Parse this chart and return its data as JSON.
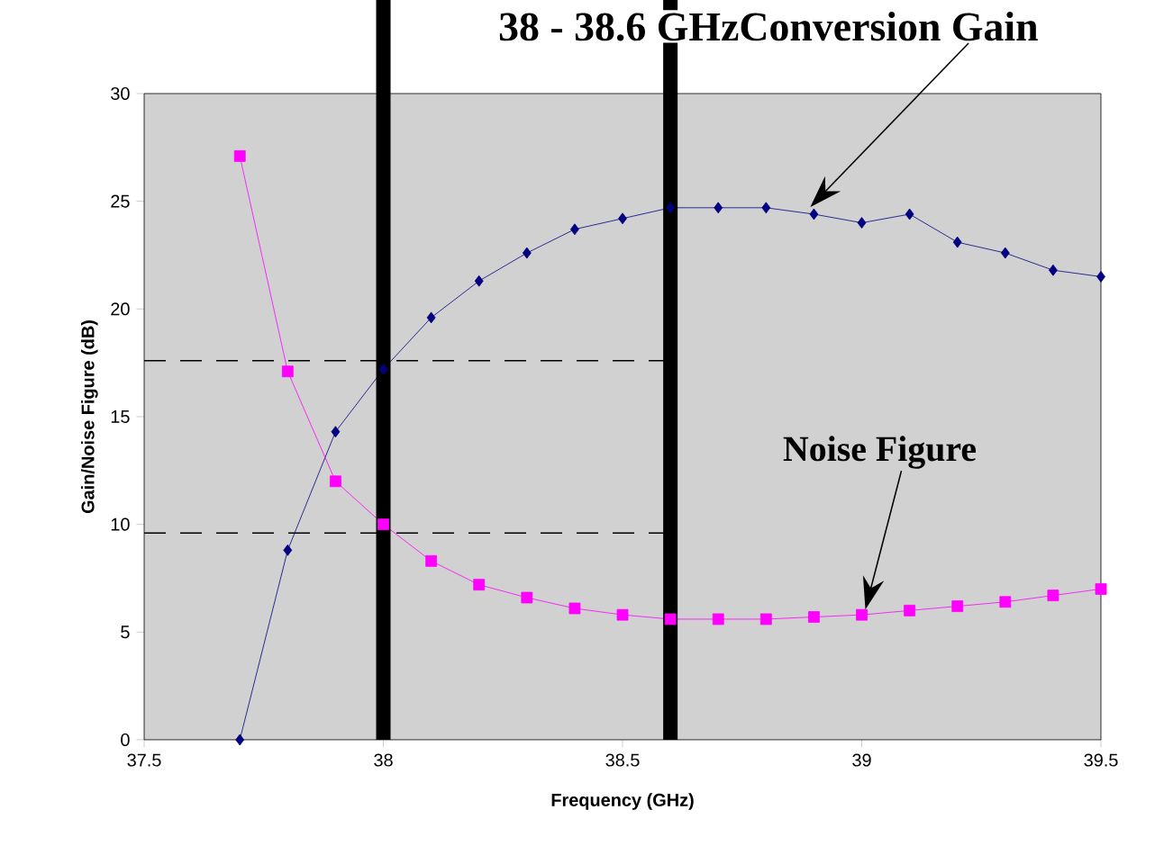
{
  "chart_data": {
    "type": "line",
    "xlabel": "Frequency (GHz)",
    "ylabel": "Gain/Noise Figure (dB)",
    "x": [
      37.7,
      37.8,
      37.9,
      38.0,
      38.1,
      38.2,
      38.3,
      38.4,
      38.5,
      38.6,
      38.7,
      38.8,
      38.9,
      39.0,
      39.1,
      39.2,
      39.3,
      39.4,
      39.5
    ],
    "series": [
      {
        "color": "#000080",
        "marker": "diamond",
        "values": [
          0,
          8.8,
          14.3,
          17.2,
          19.6,
          21.3,
          22.6,
          23.7,
          24.2,
          24.7,
          24.7,
          24.7,
          24.4,
          24.0,
          24.4,
          23.1,
          22.6,
          21.8,
          21.5
        ]
      },
      {
        "color": "#ff00ff",
        "marker": "square",
        "values": [
          27.1,
          17.1,
          12.0,
          10.0,
          8.3,
          7.2,
          6.6,
          6.1,
          5.8,
          5.6,
          5.6,
          5.6,
          5.7,
          5.8,
          6.0,
          6.2,
          6.4,
          6.7,
          7.0
        ]
      }
    ],
    "xlim": [
      37.5,
      39.5
    ],
    "xticks": [
      37.5,
      38,
      38.5,
      39,
      39.5
    ],
    "ylim": [
      0,
      30
    ],
    "yticks": [
      0,
      5,
      10,
      15,
      20,
      25,
      30
    ],
    "grid": false,
    "line_style": "solid",
    "ref_lines": [
      {
        "axis": "y",
        "value": 17.6,
        "line_style": "dashed",
        "color": "#000000"
      },
      {
        "axis": "y",
        "value": 9.6,
        "line_style": "dashed",
        "color": "#000000"
      },
      {
        "axis": "x",
        "value": 38.0,
        "line_style": "solid",
        "color": "#000000"
      },
      {
        "axis": "x",
        "value": 38.6,
        "line_style": "solid",
        "color": "#000000"
      }
    ],
    "annotations": [
      "38 - 38.6 GHz",
      "Conversion Gain",
      "Noise Figure"
    ]
  }
}
